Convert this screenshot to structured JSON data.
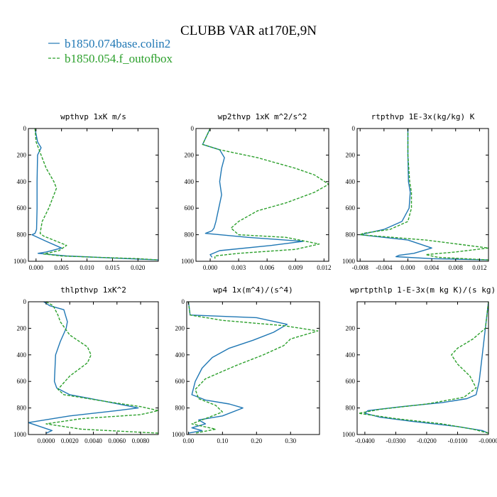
{
  "figure": {
    "title": "CLUBB VAR at170E,9N",
    "colors": {
      "blue": "#1f77b4",
      "green": "#2ca02c"
    },
    "legend": [
      {
        "label": "b1850.074base.colin2",
        "color": "#1f77b4",
        "dash": "solid"
      },
      {
        "label": "b1850.054.f_outofbox",
        "color": "#2ca02c",
        "dash": "dashed"
      }
    ]
  },
  "chart_data": [
    {
      "type": "line",
      "title": "wpthvp   1xK m/s",
      "xlim": [
        -0.0015,
        0.024
      ],
      "ylim": [
        1000,
        0
      ],
      "xticks": [
        0.0,
        0.005,
        0.01,
        0.015,
        0.02
      ],
      "xtick_labels": [
        "0.000",
        "0.005",
        "0.010",
        "0.015",
        "0.020"
      ],
      "yticks": [
        0,
        200,
        400,
        600,
        800,
        1000
      ],
      "ytick_labels": [
        "0",
        "200",
        "400",
        "600",
        "800",
        "1000"
      ],
      "series": [
        {
          "color": "#1f77b4",
          "dash": "solid",
          "x": [
            -0.0002,
            0.0003,
            0.001,
            0.0003,
            0.0002,
            0.0002,
            0.0001,
            -0.0002,
            -0.0008,
            0.002,
            0.005,
            0.002,
            0.0004,
            0.003,
            0.006,
            0.012,
            0.018,
            0.024
          ],
          "y": [
            0,
            100,
            145,
            200,
            400,
            600,
            760,
            790,
            800,
            850,
            900,
            930,
            940,
            950,
            960,
            970,
            980,
            990
          ]
        },
        {
          "color": "#2ca02c",
          "dash": "dashed",
          "x": [
            -0.0002,
            0.0,
            0.0005,
            0.001,
            0.002,
            0.0035,
            0.004,
            0.0035,
            0.0025,
            0.0012,
            0.0008,
            0.0015,
            0.006,
            0.0045,
            0.0015,
            0.005,
            0.012,
            0.02,
            0.024
          ],
          "y": [
            0,
            100,
            150,
            200,
            300,
            400,
            450,
            500,
            600,
            700,
            790,
            810,
            880,
            920,
            945,
            960,
            970,
            980,
            990
          ]
        }
      ]
    },
    {
      "type": "line",
      "title": "wp2thvp   1xK m^2/s^2",
      "xlim": [
        -0.0015,
        0.0125
      ],
      "ylim": [
        1000,
        0
      ],
      "xticks": [
        0.0,
        0.003,
        0.006,
        0.009,
        0.012
      ],
      "xtick_labels": [
        "0.000",
        "0.003",
        "0.006",
        "0.009",
        "0.012"
      ],
      "yticks": [
        0,
        200,
        400,
        600,
        800,
        1000
      ],
      "ytick_labels": [
        "0",
        "200",
        "400",
        "600",
        "800",
        "1000"
      ],
      "series": [
        {
          "color": "#1f77b4",
          "dash": "solid",
          "x": [
            0.0,
            -0.0008,
            0.001,
            0.0015,
            0.0012,
            0.001,
            0.0012,
            0.0009,
            0.0006,
            0.0004,
            0.0002,
            -0.0005,
            0.004,
            0.0098,
            0.0065,
            0.001,
            0.0,
            0.0002
          ],
          "y": [
            0,
            120,
            160,
            220,
            300,
            400,
            500,
            600,
            700,
            750,
            770,
            790,
            820,
            850,
            880,
            920,
            950,
            970
          ]
        },
        {
          "color": "#2ca02c",
          "dash": "dashed",
          "x": [
            0.0,
            -0.0008,
            0.001,
            0.005,
            0.009,
            0.011,
            0.0125,
            0.011,
            0.008,
            0.005,
            0.003,
            0.0022,
            0.003,
            0.008,
            0.0115,
            0.009,
            0.003,
            0.0005,
            0.0005
          ],
          "y": [
            0,
            120,
            160,
            220,
            300,
            350,
            420,
            480,
            560,
            620,
            700,
            750,
            800,
            820,
            870,
            910,
            940,
            960,
            980
          ]
        }
      ]
    },
    {
      "type": "line",
      "title": "rtpthvp   1E-3x(kg/kg) K",
      "xlim": [
        -0.0085,
        0.0135
      ],
      "ylim": [
        1000,
        0
      ],
      "xticks": [
        -0.008,
        -0.004,
        0.0,
        0.004,
        0.008,
        0.012
      ],
      "xtick_labels": [
        "-0.008",
        "-0.004",
        "0.000",
        "0.004",
        "0.008",
        "0.012"
      ],
      "yticks": [
        0,
        200,
        400,
        600,
        800,
        1000
      ],
      "ytick_labels": [
        "0",
        "200",
        "400",
        "600",
        "800",
        "1000"
      ],
      "series": [
        {
          "color": "#1f77b4",
          "dash": "solid",
          "x": [
            0.0,
            0.0,
            0.0001,
            0.0004,
            0.0002,
            -0.001,
            -0.004,
            -0.007,
            -0.008,
            0.0,
            0.004,
            0.001,
            -0.0015,
            -0.002,
            0.004,
            0.0135
          ],
          "y": [
            0,
            200,
            400,
            480,
            600,
            700,
            760,
            790,
            800,
            840,
            900,
            940,
            955,
            965,
            980,
            990
          ]
        },
        {
          "color": "#2ca02c",
          "dash": "dashed",
          "x": [
            0.0,
            0.0,
            0.0003,
            0.0006,
            0.0006,
            0.0,
            -0.003,
            -0.0075,
            -0.008,
            0.003,
            0.0135,
            0.008,
            0.003,
            0.005,
            0.0135
          ],
          "y": [
            0,
            200,
            400,
            480,
            600,
            700,
            760,
            790,
            800,
            840,
            900,
            930,
            950,
            970,
            990
          ]
        }
      ]
    },
    {
      "type": "line",
      "title": "thlpthvp   1xK^2",
      "xlim": [
        -0.0015,
        0.0095
      ],
      "ylim": [
        1000,
        0
      ],
      "xticks": [
        0.0,
        0.002,
        0.004,
        0.006,
        0.008
      ],
      "xtick_labels": [
        "0.0000",
        "0.0020",
        "0.0040",
        "0.0060",
        "0.0080"
      ],
      "yticks": [
        0,
        200,
        400,
        600,
        800,
        1000
      ],
      "ytick_labels": [
        "0",
        "200",
        "400",
        "600",
        "800",
        "1000"
      ],
      "series": [
        {
          "color": "#1f77b4",
          "dash": "solid",
          "x": [
            -0.0002,
            0.0003,
            0.0015,
            0.0018,
            0.0017,
            0.0012,
            0.0008,
            0.0007,
            0.0009,
            0.002,
            0.005,
            0.0078,
            0.006,
            0.002,
            -0.0015,
            -0.0005,
            0.0005,
            0.0
          ],
          "y": [
            0,
            30,
            60,
            150,
            200,
            300,
            400,
            600,
            650,
            700,
            750,
            800,
            820,
            860,
            910,
            940,
            970,
            990
          ]
        },
        {
          "color": "#2ca02c",
          "dash": "dashed",
          "x": [
            0.0,
            0.0006,
            0.001,
            0.0012,
            0.002,
            0.0035,
            0.0038,
            0.0035,
            0.002,
            0.001,
            0.0015,
            0.005,
            0.008,
            0.0095,
            0.008,
            0.003,
            0.0,
            0.003,
            0.0095
          ],
          "y": [
            0,
            30,
            100,
            150,
            250,
            340,
            400,
            460,
            560,
            660,
            700,
            750,
            790,
            820,
            850,
            880,
            920,
            960,
            990
          ]
        }
      ]
    },
    {
      "type": "line",
      "title": "wp4   1x(m^4)/(s^4)",
      "xlim": [
        -0.005,
        0.385
      ],
      "ylim": [
        1000,
        0
      ],
      "xticks": [
        0.0,
        0.1,
        0.2,
        0.3
      ],
      "xtick_labels": [
        "0.00",
        "0.10",
        "0.20",
        "0.30"
      ],
      "yticks": [
        0,
        200,
        400,
        600,
        800,
        1000
      ],
      "ytick_labels": [
        "0",
        "200",
        "400",
        "600",
        "800",
        "1000"
      ],
      "series": [
        {
          "color": "#1f77b4",
          "dash": "solid",
          "x": [
            0.0,
            0.005,
            0.2,
            0.29,
            0.25,
            0.19,
            0.12,
            0.07,
            0.04,
            0.02,
            0.01,
            0.05,
            0.12,
            0.16,
            0.1,
            0.03,
            0.05,
            0.01,
            0.04,
            0.0
          ],
          "y": [
            0,
            100,
            120,
            170,
            230,
            290,
            350,
            420,
            500,
            600,
            700,
            740,
            770,
            800,
            860,
            890,
            920,
            950,
            970,
            990
          ]
        },
        {
          "color": "#2ca02c",
          "dash": "dashed",
          "x": [
            0.0,
            0.005,
            0.1,
            0.28,
            0.38,
            0.3,
            0.28,
            0.22,
            0.14,
            0.05,
            0.02,
            0.03,
            0.08,
            0.1,
            0.05,
            0.01,
            0.08,
            0.02
          ],
          "y": [
            0,
            100,
            140,
            180,
            220,
            280,
            330,
            400,
            480,
            580,
            660,
            730,
            780,
            830,
            880,
            920,
            960,
            990
          ]
        }
      ]
    },
    {
      "type": "line",
      "title": "wprtpthlp   1-E-3x(m kg K)/(s kg)",
      "xlim": [
        -0.0425,
        0.0
      ],
      "ylim": [
        1000,
        0
      ],
      "xticks": [
        -0.04,
        -0.03,
        -0.02,
        -0.01,
        0.0
      ],
      "xtick_labels": [
        "-0.0400",
        "-0.0300",
        "-0.0200",
        "-0.0100",
        "-0.0000"
      ],
      "yticks": [
        200,
        400,
        600,
        800,
        1000
      ],
      "ytick_labels": [
        "200",
        "400",
        "600",
        "800",
        "1000"
      ],
      "series": [
        {
          "color": "#1f77b4",
          "dash": "solid",
          "x": [
            0.0,
            -0.001,
            -0.002,
            -0.003,
            -0.0035,
            -0.004,
            -0.007,
            -0.015,
            -0.028,
            -0.039,
            -0.04,
            -0.035,
            -0.025,
            -0.01,
            -0.002,
            0.0
          ],
          "y": [
            0,
            200,
            400,
            600,
            650,
            700,
            730,
            760,
            790,
            820,
            840,
            870,
            900,
            940,
            970,
            990
          ]
        },
        {
          "color": "#2ca02c",
          "dash": "dashed",
          "x": [
            0.0,
            -0.001,
            -0.005,
            -0.01,
            -0.012,
            -0.01,
            -0.006,
            -0.004,
            -0.008,
            -0.02,
            -0.035,
            -0.042,
            -0.03,
            -0.015,
            -0.005,
            0.0
          ],
          "y": [
            0,
            200,
            280,
            350,
            400,
            470,
            560,
            650,
            720,
            770,
            810,
            840,
            880,
            920,
            960,
            990
          ]
        }
      ]
    }
  ]
}
